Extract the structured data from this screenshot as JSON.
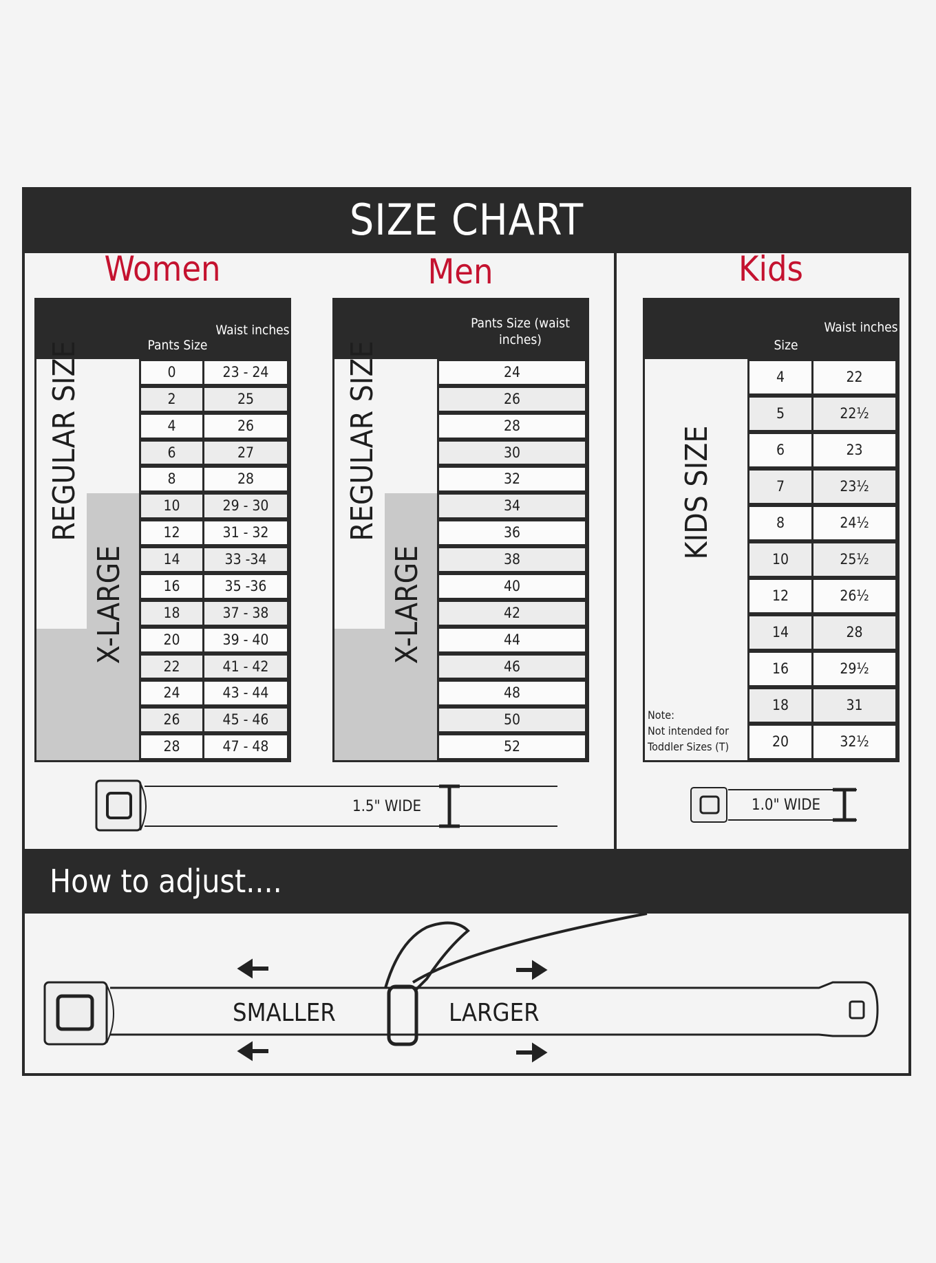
{
  "title": "SIZE CHART",
  "women": {
    "heading": "Women",
    "col1": "Pants Size",
    "col2": "Waist inches",
    "regular_label": "REGULAR SIZE",
    "xlarge_label": "X-LARGE",
    "rows": [
      [
        "0",
        "23 - 24"
      ],
      [
        "2",
        "25"
      ],
      [
        "4",
        "26"
      ],
      [
        "6",
        "27"
      ],
      [
        "8",
        "28"
      ],
      [
        "10",
        "29 - 30"
      ],
      [
        "12",
        "31 - 32"
      ],
      [
        "14",
        "33 -34"
      ],
      [
        "16",
        "35 -36"
      ],
      [
        "18",
        "37 - 38"
      ],
      [
        "20",
        "39 - 40"
      ],
      [
        "22",
        "41 - 42"
      ],
      [
        "24",
        "43 - 44"
      ],
      [
        "26",
        "45 - 46"
      ],
      [
        "28",
        "47 - 48"
      ]
    ]
  },
  "men": {
    "heading": "Men",
    "col1": "Pants Size (waist inches)",
    "regular_label": "REGULAR SIZE",
    "xlarge_label": "X-LARGE",
    "rows": [
      "24",
      "26",
      "28",
      "30",
      "32",
      "34",
      "36",
      "38",
      "40",
      "42",
      "44",
      "46",
      "48",
      "50",
      "52"
    ]
  },
  "kids": {
    "heading": "Kids",
    "col1": "Size",
    "col2": "Waist inches",
    "label": "KIDS SIZE",
    "note_title": "Note:",
    "note_line1": "Not intended for",
    "note_line2": "Toddler Sizes (T)",
    "rows": [
      [
        "4",
        "22"
      ],
      [
        "5",
        "22½"
      ],
      [
        "6",
        "23"
      ],
      [
        "7",
        "23½"
      ],
      [
        "8",
        "24½"
      ],
      [
        "10",
        "25½"
      ],
      [
        "12",
        "26½"
      ],
      [
        "14",
        "28"
      ],
      [
        "16",
        "29½"
      ],
      [
        "18",
        "31"
      ],
      [
        "20",
        "32½"
      ]
    ]
  },
  "adult_belt_width": "1.5\" WIDE",
  "kids_belt_width": "1.0\" WIDE",
  "adjust": {
    "heading": "How to adjust....",
    "smaller": "SMALLER",
    "larger": "LARGER"
  },
  "colors": {
    "accent": "#c4122f",
    "dark": "#2a2a2a",
    "xlarge_shade": "#c9c9c9"
  }
}
